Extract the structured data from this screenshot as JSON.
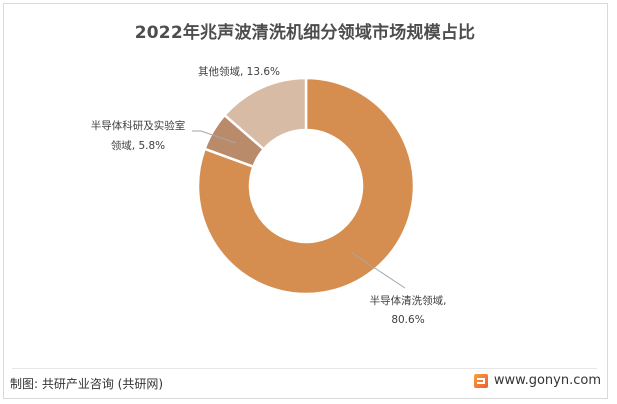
{
  "title": "2022年兆声波清洗机细分领域市场规模占比",
  "chart_data": {
    "type": "pie",
    "variant": "donut",
    "title": "2022年兆声波清洗机细分领域市场规模占比",
    "categories": [
      "半导体清洗领域",
      "半导体科研及实验室领域",
      "其他领域"
    ],
    "values": [
      80.6,
      5.8,
      13.6
    ],
    "unit": "%",
    "colors": [
      "#D58E50",
      "#B98B6B",
      "#D7BBA5"
    ],
    "start_angle": "12 o'clock, clockwise",
    "legend": "none (data labels with leader lines)"
  },
  "labels": {
    "main": {
      "name": "半导体清洗领域,",
      "value": "80.6%"
    },
    "lab": {
      "line1": "半导体科研及实验室",
      "line2": "领域, 5.8%"
    },
    "other": {
      "text": "其他领域, 13.6%"
    }
  },
  "footer": {
    "source": "制图: 共研产业咨询 (共研网)",
    "website": "www.gonyn.com"
  }
}
